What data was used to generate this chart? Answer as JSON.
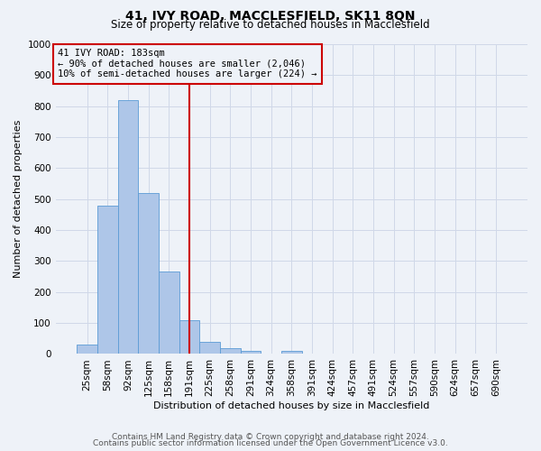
{
  "title": "41, IVY ROAD, MACCLESFIELD, SK11 8QN",
  "subtitle": "Size of property relative to detached houses in Macclesfield",
  "xlabel": "Distribution of detached houses by size in Macclesfield",
  "ylabel": "Number of detached properties",
  "categories": [
    "25sqm",
    "58sqm",
    "92sqm",
    "125sqm",
    "158sqm",
    "191sqm",
    "225sqm",
    "258sqm",
    "291sqm",
    "324sqm",
    "358sqm",
    "391sqm",
    "424sqm",
    "457sqm",
    "491sqm",
    "524sqm",
    "557sqm",
    "590sqm",
    "624sqm",
    "657sqm",
    "690sqm"
  ],
  "bar_values": [
    30,
    480,
    820,
    520,
    265,
    110,
    40,
    18,
    10,
    0,
    10,
    0,
    0,
    0,
    0,
    0,
    0,
    0,
    0,
    0,
    0
  ],
  "bar_color": "#aec6e8",
  "bar_edge_color": "#5b9bd5",
  "vline_x_index": 5,
  "vline_color": "#cc0000",
  "ylim": [
    0,
    1000
  ],
  "yticks": [
    0,
    100,
    200,
    300,
    400,
    500,
    600,
    700,
    800,
    900,
    1000
  ],
  "annotation_title": "41 IVY ROAD: 183sqm",
  "annotation_line1": "← 90% of detached houses are smaller (2,046)",
  "annotation_line2": "10% of semi-detached houses are larger (224) →",
  "annotation_box_color": "#cc0000",
  "grid_color": "#d0d8e8",
  "bg_color": "#eef2f8",
  "title_fontsize": 10,
  "subtitle_fontsize": 8.5,
  "axis_label_fontsize": 8,
  "tick_fontsize": 7.5,
  "annotation_fontsize": 7.5,
  "footer1": "Contains HM Land Registry data © Crown copyright and database right 2024.",
  "footer2": "Contains public sector information licensed under the Open Government Licence v3.0.",
  "footer_fontsize": 6.5
}
